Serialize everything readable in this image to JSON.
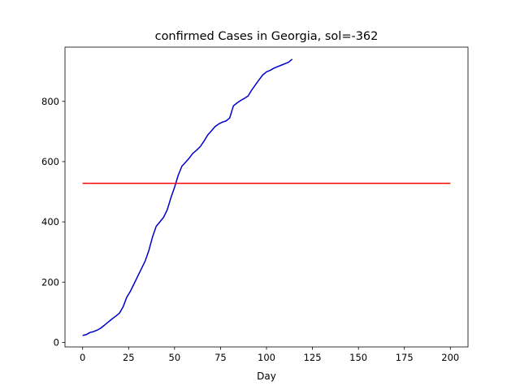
{
  "chart_data": {
    "type": "line",
    "title": "confirmed Cases in Georgia, sol=-362",
    "xlabel": "Day",
    "ylabel": "",
    "xlim": [
      -9.6,
      209.6
    ],
    "ylim": [
      -15,
      980
    ],
    "xticks": [
      0,
      25,
      50,
      75,
      100,
      125,
      150,
      175,
      200
    ],
    "yticks": [
      0,
      200,
      400,
      600,
      800
    ],
    "grid": false,
    "legend": "none",
    "series": [
      {
        "color": "#0000cc",
        "x": [
          0,
          2,
          4,
          6,
          8,
          10,
          12,
          14,
          16,
          18,
          20,
          22,
          24,
          26,
          28,
          30,
          32,
          34,
          36,
          38,
          40,
          42,
          44,
          46,
          48,
          50,
          52,
          54,
          56,
          58,
          60,
          62,
          64,
          66,
          68,
          70,
          72,
          74,
          76,
          78,
          80,
          82,
          84,
          86,
          88,
          90,
          92,
          94,
          96,
          98,
          100,
          102,
          104,
          106,
          108,
          110,
          112,
          114
        ],
        "y": [
          23,
          26,
          33,
          36,
          41,
          48,
          58,
          68,
          78,
          87,
          97,
          118,
          150,
          170,
          195,
          220,
          245,
          270,
          305,
          350,
          385,
          400,
          415,
          440,
          480,
          515,
          555,
          585,
          598,
          612,
          628,
          638,
          650,
          668,
          688,
          702,
          716,
          725,
          731,
          735,
          745,
          785,
          795,
          803,
          810,
          818,
          838,
          855,
          872,
          888,
          898,
          903,
          910,
          915,
          920,
          925,
          930,
          940
        ]
      },
      {
        "color": "#ff0000",
        "x": [
          0,
          200
        ],
        "y": [
          528,
          528
        ]
      }
    ]
  }
}
